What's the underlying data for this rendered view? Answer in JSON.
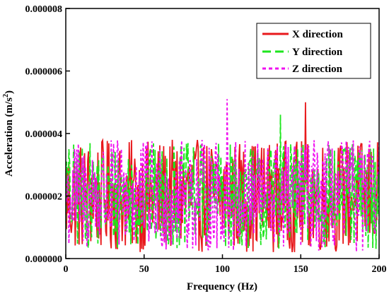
{
  "chart_data": {
    "type": "line",
    "title": "",
    "xlabel": "Frequency (Hz)",
    "ylabel_main": "Acceleration (m/s",
    "ylabel_sup": "2",
    "ylabel_tail": ")",
    "xlim": [
      0,
      200
    ],
    "ylim": [
      0,
      8e-06
    ],
    "x_ticks": [
      0,
      50,
      100,
      150,
      200
    ],
    "x_tick_labels": [
      "0",
      "50",
      "100",
      "150",
      "200"
    ],
    "y_ticks": [
      0,
      2e-06,
      4e-06,
      6e-06,
      8e-06
    ],
    "y_tick_labels": [
      "0.000000",
      "0.000002",
      "0.000004",
      "0.000006",
      "0.000008"
    ],
    "grid": false,
    "legend_position": "top-right",
    "series": [
      {
        "name": "X direction",
        "color": "#e8191c",
        "dash": "solid",
        "mean": 2e-06,
        "amplitude": 1.8e-06,
        "peak_x": 153,
        "peak_y": 5e-06
      },
      {
        "name": "Y direction",
        "color": "#1ee61e",
        "dash": "long-dash",
        "mean": 2e-06,
        "amplitude": 1.7e-06,
        "peak_x": 137,
        "peak_y": 4.6e-06
      },
      {
        "name": "Z direction",
        "color": "#f00ff0",
        "dash": "short-dash",
        "mean": 2e-06,
        "amplitude": 1.8e-06,
        "peak_x": 103,
        "peak_y": 5.1e-06
      }
    ]
  }
}
